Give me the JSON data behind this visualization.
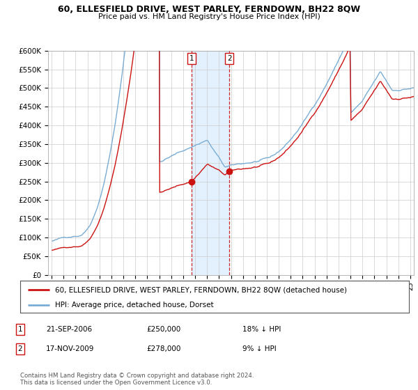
{
  "title": "60, ELLESFIELD DRIVE, WEST PARLEY, FERNDOWN, BH22 8QW",
  "subtitle": "Price paid vs. HM Land Registry's House Price Index (HPI)",
  "ylim": [
    0,
    600000
  ],
  "yticks": [
    0,
    50000,
    100000,
    150000,
    200000,
    250000,
    300000,
    350000,
    400000,
    450000,
    500000,
    550000,
    600000
  ],
  "ytick_labels": [
    "£0",
    "£50K",
    "£100K",
    "£150K",
    "£200K",
    "£250K",
    "£300K",
    "£350K",
    "£400K",
    "£450K",
    "£500K",
    "£550K",
    "£600K"
  ],
  "sale1_date": "21-SEP-2006",
  "sale1_price": 250000,
  "sale1_label": "£250,000",
  "sale1_hpi_diff": "18% ↓ HPI",
  "sale2_date": "17-NOV-2009",
  "sale2_price": 278000,
  "sale2_label": "£278,000",
  "sale2_hpi_diff": "9% ↓ HPI",
  "legend_line1": "60, ELLESFIELD DRIVE, WEST PARLEY, FERNDOWN, BH22 8QW (detached house)",
  "legend_line2": "HPI: Average price, detached house, Dorset",
  "footer": "Contains HM Land Registry data © Crown copyright and database right 2024.\nThis data is licensed under the Open Government Licence v3.0.",
  "hpi_color": "#7aadd4",
  "price_color": "#cc1111",
  "shade_color": "#ddeeff",
  "background_color": "#ffffff",
  "plot_bg_color": "#ffffff",
  "sale1_year_f": 2006.72,
  "sale2_year_f": 2009.87
}
